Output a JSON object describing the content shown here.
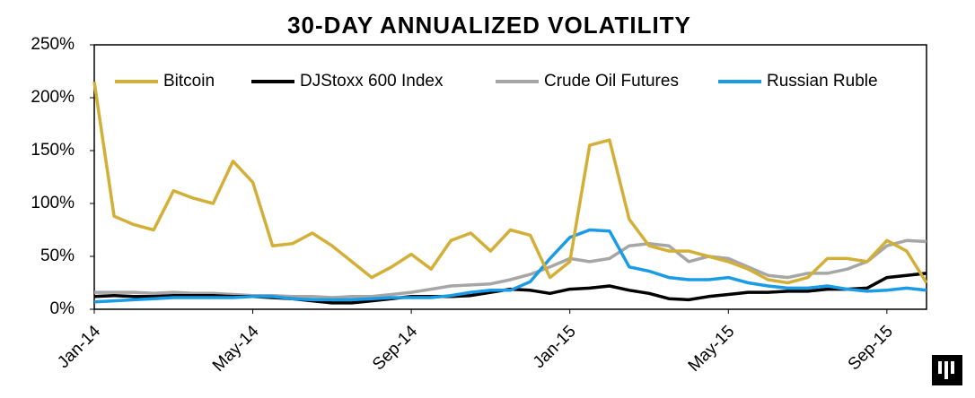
{
  "chart_data": {
    "type": "line",
    "title": "30-DAY ANNUALIZED VOLATILITY",
    "categories": [
      "Jan-14",
      null,
      null,
      null,
      null,
      null,
      null,
      null,
      "May-14",
      null,
      null,
      null,
      null,
      null,
      null,
      null,
      "Sep-14",
      null,
      null,
      null,
      null,
      null,
      null,
      null,
      "Jan-15",
      null,
      null,
      null,
      null,
      null,
      null,
      null,
      "May-15",
      null,
      null,
      null,
      null,
      null,
      null,
      null,
      "Sep-15",
      null,
      null
    ],
    "series": [
      {
        "name": "Bitcoin",
        "color": "#d4af37",
        "values": [
          215,
          88,
          80,
          75,
          112,
          105,
          100,
          140,
          120,
          60,
          62,
          72,
          60,
          45,
          30,
          40,
          52,
          38,
          65,
          72,
          55,
          75,
          70,
          30,
          45,
          155,
          160,
          85,
          60,
          55,
          55,
          50,
          45,
          38,
          28,
          25,
          30,
          48,
          48,
          45,
          65,
          55,
          25
        ]
      },
      {
        "name": "DJStoxx 600 Index",
        "color": "#000000",
        "values": [
          12,
          13,
          12,
          12,
          13,
          13,
          13,
          12,
          12,
          11,
          10,
          8,
          6,
          6,
          8,
          10,
          12,
          12,
          12,
          13,
          16,
          19,
          18,
          15,
          19,
          20,
          22,
          18,
          15,
          10,
          9,
          12,
          14,
          16,
          16,
          17,
          17,
          19,
          19,
          20,
          30,
          32,
          34
        ]
      },
      {
        "name": "Crude Oil Futures",
        "color": "#a6a6a6",
        "values": [
          16,
          16,
          16,
          15,
          16,
          15,
          15,
          14,
          13,
          13,
          12,
          12,
          11,
          12,
          12,
          14,
          16,
          19,
          22,
          23,
          24,
          28,
          33,
          40,
          48,
          45,
          48,
          60,
          62,
          60,
          45,
          50,
          48,
          40,
          32,
          30,
          34,
          34,
          38,
          45,
          60,
          65,
          64
        ]
      },
      {
        "name": "Russian Ruble",
        "color": "#1a9be6",
        "values": [
          7,
          8,
          9,
          10,
          11,
          11,
          11,
          11,
          12,
          12,
          10,
          9,
          9,
          9,
          10,
          11,
          11,
          11,
          13,
          16,
          18,
          18,
          26,
          48,
          68,
          75,
          74,
          40,
          36,
          30,
          28,
          28,
          30,
          25,
          22,
          20,
          20,
          22,
          19,
          17,
          18,
          20,
          18
        ]
      }
    ],
    "ylim": [
      0,
      250
    ],
    "yticks": [
      {
        "value": 0,
        "label": "0%"
      },
      {
        "value": 50,
        "label": "50%"
      },
      {
        "value": 100,
        "label": "100%"
      },
      {
        "value": 150,
        "label": "150%"
      },
      {
        "value": 200,
        "label": "200%"
      },
      {
        "value": 250,
        "label": "250%"
      }
    ],
    "grid": false,
    "legend": "top"
  }
}
